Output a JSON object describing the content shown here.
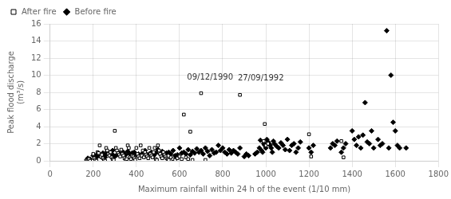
{
  "chart_data": {
    "type": "scatter",
    "xlabel": "Maximum rainfall within 24 h of the event (1/10 mm)",
    "ylabel": [
      "Peak flood discharge",
      "(m³/s)"
    ],
    "xlim": [
      0,
      1800
    ],
    "ylim": [
      0,
      16
    ],
    "xticks": [
      0,
      200,
      400,
      600,
      800,
      1000,
      1200,
      1400,
      1600,
      1800
    ],
    "yticks": [
      0,
      2,
      4,
      6,
      8,
      10,
      12,
      14,
      16
    ],
    "grid": true,
    "legend": "upper left",
    "series": [
      {
        "name": "Before fire",
        "color": "#000000",
        "marker": "diamond",
        "x": [
          170,
          175,
          180,
          185,
          200,
          210,
          215,
          220,
          225,
          230,
          235,
          240,
          245,
          250,
          255,
          260,
          265,
          270,
          275,
          280,
          285,
          290,
          295,
          300,
          310,
          320,
          330,
          340,
          350,
          360,
          370,
          380,
          390,
          400,
          410,
          420,
          430,
          440,
          450,
          460,
          470,
          480,
          490,
          500,
          510,
          520,
          530,
          540,
          550,
          560,
          570,
          580,
          590,
          600,
          610,
          620,
          630,
          640,
          650,
          660,
          670,
          680,
          690,
          700,
          710,
          720,
          730,
          740,
          750,
          760,
          770,
          780,
          790,
          800,
          810,
          820,
          830,
          840,
          850,
          860,
          870,
          880,
          900,
          910,
          920,
          950,
          960,
          970,
          975,
          980,
          985,
          990,
          995,
          1000,
          1005,
          1010,
          1015,
          1020,
          1025,
          1030,
          1035,
          1040,
          1050,
          1060,
          1070,
          1080,
          1090,
          1100,
          1110,
          1120,
          1130,
          1140,
          1150,
          1160,
          1200,
          1210,
          1220,
          1300,
          1310,
          1320,
          1330,
          1350,
          1360,
          1370,
          1400,
          1410,
          1420,
          1430,
          1440,
          1450,
          1460,
          1470,
          1480,
          1490,
          1500,
          1520,
          1530,
          1540,
          1560,
          1570,
          1580,
          1590,
          1600,
          1610,
          1620,
          1650
        ],
        "values": [
          0.1,
          0.3,
          0.05,
          0.2,
          0.6,
          0.5,
          0.4,
          0.8,
          0.7,
          0.6,
          0.5,
          0.7,
          0.9,
          0.6,
          0.4,
          0.8,
          1.1,
          0.9,
          0.7,
          1.0,
          0.8,
          1.2,
          0.6,
          0.5,
          0.7,
          0.9,
          0.8,
          1.0,
          0.7,
          1.1,
          0.8,
          0.9,
          1.0,
          0.7,
          0.8,
          0.6,
          0.9,
          1.2,
          0.7,
          0.8,
          1.0,
          0.6,
          0.9,
          1.3,
          0.8,
          1.1,
          0.7,
          0.9,
          1.0,
          0.8,
          1.2,
          0.6,
          0.7,
          1.5,
          0.9,
          1.0,
          0.8,
          1.3,
          0.7,
          1.1,
          0.9,
          1.4,
          1.0,
          1.2,
          0.8,
          1.5,
          1.1,
          0.6,
          1.3,
          0.9,
          1.0,
          1.8,
          1.2,
          1.5,
          1.0,
          0.8,
          1.3,
          0.9,
          1.2,
          1.0,
          0.8,
          1.5,
          0.5,
          0.8,
          0.6,
          0.8,
          1.0,
          1.5,
          2.4,
          1.2,
          1.0,
          2.0,
          1.8,
          1.5,
          2.5,
          2.2,
          2.0,
          1.8,
          1.5,
          1.0,
          2.3,
          2.0,
          1.7,
          1.5,
          2.1,
          1.8,
          1.3,
          2.5,
          1.2,
          1.8,
          2.0,
          1.0,
          1.5,
          2.2,
          1.5,
          1.0,
          1.8,
          1.5,
          2.0,
          1.8,
          2.3,
          1.0,
          1.5,
          2.0,
          3.5,
          2.5,
          1.8,
          2.8,
          1.5,
          3.0,
          6.8,
          2.2,
          2.0,
          3.5,
          1.5,
          2.5,
          1.8,
          2.0,
          15.2,
          1.5,
          10.0,
          4.5,
          3.5,
          1.8,
          1.5,
          1.5
        ]
      },
      {
        "name": "After fire",
        "color": "#000000",
        "marker": "open-square",
        "x": [
          170,
          175,
          180,
          185,
          200,
          205,
          210,
          215,
          220,
          225,
          230,
          235,
          240,
          245,
          250,
          255,
          260,
          265,
          270,
          275,
          280,
          285,
          290,
          295,
          300,
          305,
          310,
          315,
          320,
          325,
          330,
          335,
          340,
          345,
          350,
          355,
          360,
          365,
          370,
          375,
          380,
          385,
          390,
          395,
          400,
          405,
          410,
          415,
          420,
          425,
          430,
          435,
          440,
          445,
          450,
          455,
          460,
          465,
          470,
          475,
          480,
          485,
          490,
          495,
          500,
          505,
          510,
          515,
          520,
          525,
          530,
          535,
          540,
          545,
          550,
          560,
          570,
          580,
          590,
          600,
          610,
          620,
          630,
          640,
          650,
          660,
          700,
          720,
          880,
          990,
          995,
          1000,
          1010,
          1200,
          1210,
          1350,
          1360
        ],
        "values": [
          0.05,
          0.1,
          0.2,
          0.0,
          0.8,
          0.3,
          0.1,
          0.0,
          1.0,
          0.9,
          1.8,
          0.5,
          0.7,
          0.3,
          0.1,
          0.0,
          1.5,
          1.2,
          0.8,
          0.6,
          1.0,
          0.4,
          0.2,
          0.1,
          3.5,
          1.5,
          1.2,
          0.9,
          0.7,
          0.5,
          1.3,
          0.8,
          0.6,
          0.3,
          0.1,
          0.2,
          1.8,
          1.5,
          0.4,
          0.2,
          0.6,
          0.5,
          0.3,
          0.1,
          1.5,
          0.8,
          0.5,
          0.3,
          1.8,
          0.6,
          1.2,
          0.4,
          1.0,
          0.7,
          0.5,
          0.3,
          1.5,
          0.8,
          0.6,
          0.4,
          1.0,
          1.5,
          0.2,
          0.1,
          1.8,
          1.2,
          0.8,
          0.5,
          0.3,
          1.0,
          0.7,
          0.5,
          0.3,
          0.2,
          0.1,
          0.4,
          0.2,
          0.1,
          0.3,
          0.5,
          0.2,
          5.4,
          0.4,
          0.2,
          3.4,
          0.1,
          7.9,
          0.1,
          7.7,
          2.3,
          4.3,
          1.8,
          2.0,
          3.1,
          0.5,
          2.3,
          0.4
        ]
      }
    ],
    "annotations": [
      {
        "text": "09/12/1990",
        "x": 635,
        "y": 9.3
      },
      {
        "text": "27/09/1992",
        "x": 870,
        "y": 9.2
      }
    ]
  }
}
